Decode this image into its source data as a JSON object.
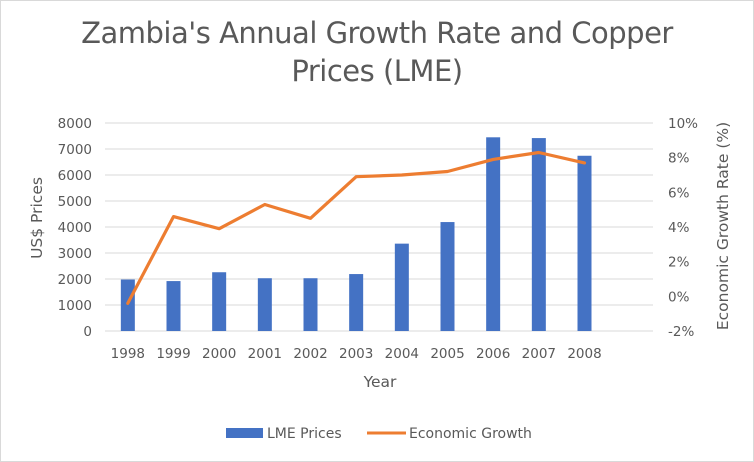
{
  "chart_data": {
    "type": "bar",
    "title_lines": [
      "Zambia's Annual Growth Rate and Copper",
      "Prices (LME)"
    ],
    "xlabel": "Year",
    "ylabel": "US$ Prices",
    "y2label": "Economic Growth Rate (%)",
    "categories": [
      "1998",
      "1999",
      "2000",
      "2001",
      "2002",
      "2003",
      "2004",
      "2005",
      "2006",
      "2007",
      "2008"
    ],
    "category_slots": 12,
    "ylim": [
      0,
      8000
    ],
    "yticks": [
      0,
      1000,
      2000,
      3000,
      4000,
      5000,
      6000,
      7000,
      8000
    ],
    "y2lim": [
      -2,
      10
    ],
    "y2ticks": [
      -2,
      0,
      2,
      4,
      6,
      8,
      10
    ],
    "y2tick_suffix": "%",
    "grid": true,
    "legend_position": "bottom",
    "series": [
      {
        "name": "LME Prices",
        "type": "bar",
        "axis": "left",
        "color": "#4472c4",
        "values": [
          1980,
          1920,
          2260,
          2030,
          2030,
          2190,
          3360,
          4190,
          7450,
          7420,
          6740
        ]
      },
      {
        "name": "Economic Growth",
        "type": "line",
        "axis": "right",
        "color": "#ed7d31",
        "values": [
          -0.4,
          4.6,
          3.9,
          5.3,
          4.5,
          6.9,
          7.0,
          7.2,
          7.9,
          8.3,
          7.7
        ]
      }
    ]
  }
}
